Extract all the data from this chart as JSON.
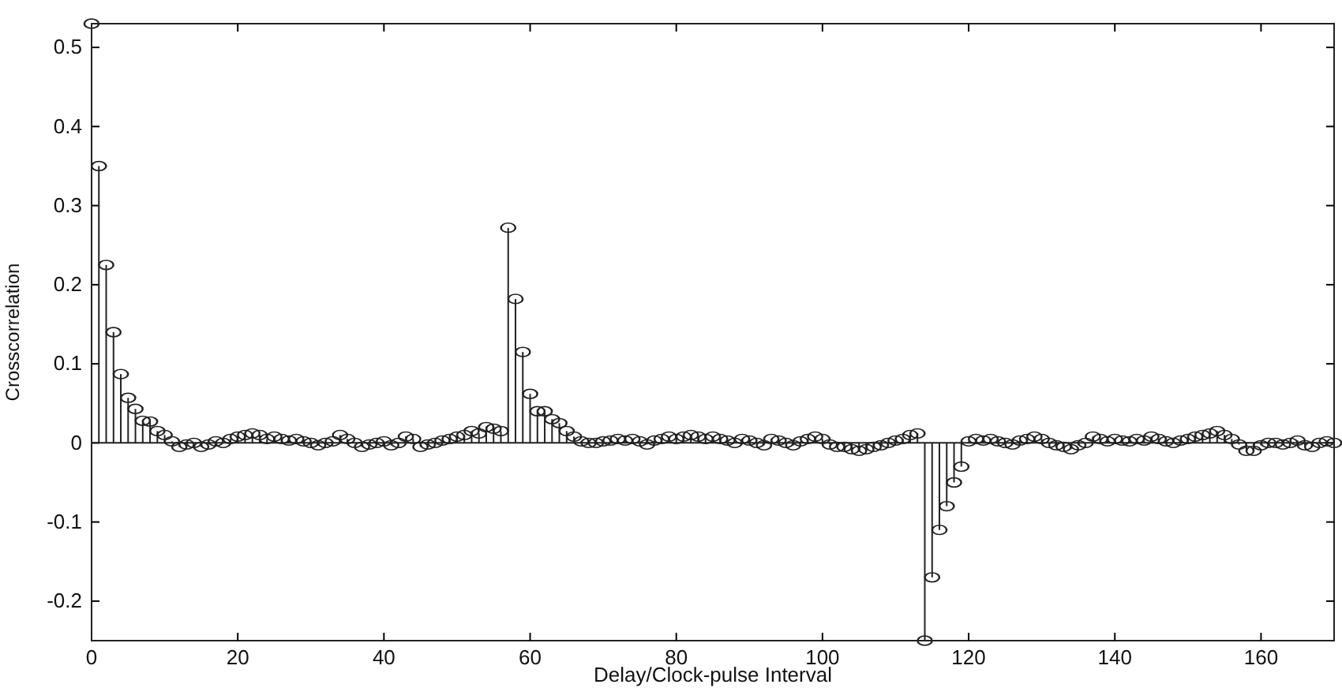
{
  "chart_data": {
    "type": "lollipop",
    "xlabel": "Delay/Clock-pulse Interval",
    "ylabel": "Crosscorrelation",
    "marker": "circle",
    "x": [
      0,
      1,
      2,
      3,
      4,
      5,
      6,
      7,
      8,
      9,
      10,
      11,
      12,
      13,
      14,
      15,
      16,
      17,
      18,
      19,
      20,
      21,
      22,
      23,
      24,
      25,
      26,
      27,
      28,
      29,
      30,
      31,
      32,
      33,
      34,
      35,
      36,
      37,
      38,
      39,
      40,
      41,
      42,
      43,
      44,
      45,
      46,
      47,
      48,
      49,
      50,
      51,
      52,
      53,
      54,
      55,
      56,
      57,
      58,
      59,
      60,
      61,
      62,
      63,
      64,
      65,
      66,
      67,
      68,
      69,
      70,
      71,
      72,
      73,
      74,
      75,
      76,
      77,
      78,
      79,
      80,
      81,
      82,
      83,
      84,
      85,
      86,
      87,
      88,
      89,
      90,
      91,
      92,
      93,
      94,
      95,
      96,
      97,
      98,
      99,
      100,
      101,
      102,
      103,
      104,
      105,
      106,
      107,
      108,
      109,
      110,
      111,
      112,
      113,
      114,
      115,
      116,
      117,
      118,
      119,
      120,
      121,
      122,
      123,
      124,
      125,
      126,
      127,
      128,
      129,
      130,
      131,
      132,
      133,
      134,
      135,
      136,
      137,
      138,
      139,
      140,
      141,
      142,
      143,
      144,
      145,
      146,
      147,
      148,
      149,
      150,
      151,
      152,
      153,
      154,
      155,
      156,
      157,
      158,
      159,
      160,
      161,
      162,
      163,
      164,
      165,
      166,
      167,
      168,
      169,
      170
    ],
    "series": [
      {
        "color": "#222222",
        "values": [
          0.53,
          0.35,
          0.225,
          0.14,
          0.087,
          0.057,
          0.043,
          0.028,
          0.027,
          0.015,
          0.01,
          0.002,
          -0.005,
          -0.002,
          0,
          -0.005,
          -0.002,
          0.002,
          0,
          0.005,
          0.008,
          0.01,
          0.012,
          0.01,
          0.005,
          0.008,
          0.005,
          0.003,
          0.005,
          0.002,
          0,
          -0.003,
          0,
          0.002,
          0.01,
          0.005,
          0,
          -0.005,
          -0.002,
          0,
          0.002,
          -0.003,
          0,
          0.008,
          0.005,
          -0.005,
          -0.002,
          0,
          0.003,
          0.005,
          0.008,
          0.01,
          0.015,
          0.012,
          0.02,
          0.018,
          0.015,
          0.272,
          0.182,
          0.115,
          0.062,
          0.04,
          0.04,
          0.03,
          0.025,
          0.015,
          0.008,
          0.002,
          0,
          0,
          0.002,
          0.003,
          0.005,
          0.003,
          0.005,
          0.002,
          -0.002,
          0.003,
          0.005,
          0.008,
          0.005,
          0.008,
          0.01,
          0.008,
          0.005,
          0.008,
          0.005,
          0.003,
          0,
          0.005,
          0.003,
          0,
          -0.003,
          0.005,
          0.003,
          0,
          -0.003,
          0.002,
          0.005,
          0.008,
          0.005,
          -0.002,
          -0.005,
          -0.005,
          -0.008,
          -0.01,
          -0.008,
          -0.005,
          -0.003,
          0,
          0.003,
          0.005,
          0.01,
          0.012,
          -0.25,
          -0.17,
          -0.11,
          -0.08,
          -0.05,
          -0.03,
          0.002,
          0.005,
          0.003,
          0.005,
          0.002,
          0,
          -0.002,
          0.003,
          0.005,
          0.008,
          0.005,
          0,
          -0.003,
          -0.005,
          -0.008,
          -0.003,
          0,
          0.008,
          0.005,
          0.002,
          0.005,
          0.003,
          0.002,
          0.005,
          0.003,
          0.008,
          0.005,
          0.002,
          0,
          0.003,
          0.005,
          0.008,
          0.01,
          0.012,
          0.015,
          0.01,
          0.005,
          -0.002,
          -0.01,
          -0.01,
          -0.003,
          0,
          0,
          -0.002,
          0,
          0.003,
          -0.003,
          -0.005,
          0,
          0.002,
          0
        ]
      }
    ],
    "xlim": [
      0,
      170
    ],
    "xticks": [
      0,
      20,
      40,
      60,
      80,
      100,
      120,
      140,
      160
    ],
    "ylim": [
      -0.25,
      0.53
    ],
    "yticks": [
      -0.2,
      -0.1,
      0,
      0.1,
      0.2,
      0.3,
      0.4,
      0.5
    ]
  }
}
